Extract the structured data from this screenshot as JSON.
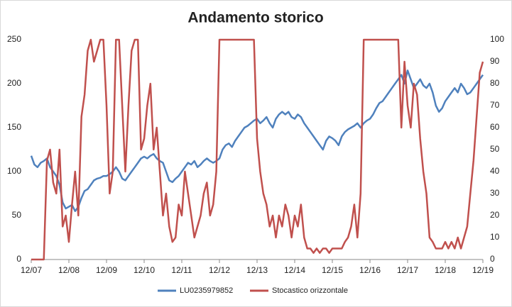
{
  "chart_data": {
    "type": "line",
    "title": "Andamento storico",
    "x": [
      "12/07",
      "01/08",
      "02/08",
      "03/08",
      "04/08",
      "05/08",
      "06/08",
      "07/08",
      "08/08",
      "09/08",
      "10/08",
      "11/08",
      "12/08",
      "01/09",
      "02/09",
      "03/09",
      "04/09",
      "05/09",
      "06/09",
      "07/09",
      "08/09",
      "09/09",
      "10/09",
      "11/09",
      "12/09",
      "01/10",
      "02/10",
      "03/10",
      "04/10",
      "05/10",
      "06/10",
      "07/10",
      "08/10",
      "09/10",
      "10/10",
      "11/10",
      "12/10",
      "01/11",
      "02/11",
      "03/11",
      "04/11",
      "05/11",
      "06/11",
      "07/11",
      "08/11",
      "09/11",
      "10/11",
      "11/11",
      "12/11",
      "01/12",
      "02/12",
      "03/12",
      "04/12",
      "05/12",
      "06/12",
      "07/12",
      "08/12",
      "09/12",
      "10/12",
      "11/12",
      "12/12",
      "01/13",
      "02/13",
      "03/13",
      "04/13",
      "05/13",
      "06/13",
      "07/13",
      "08/13",
      "09/13",
      "10/13",
      "11/13",
      "12/13",
      "01/14",
      "02/14",
      "03/14",
      "04/14",
      "05/14",
      "06/14",
      "07/14",
      "08/14",
      "09/14",
      "10/14",
      "11/14",
      "12/14",
      "01/15",
      "02/15",
      "03/15",
      "04/15",
      "05/15",
      "06/15",
      "07/15",
      "08/15",
      "09/15",
      "10/15",
      "11/15",
      "12/15",
      "01/16",
      "02/16",
      "03/16",
      "04/16",
      "05/16",
      "06/16",
      "07/16",
      "08/16",
      "09/16",
      "10/16",
      "11/16",
      "12/16",
      "01/17",
      "02/17",
      "03/17",
      "04/17",
      "05/17",
      "06/17",
      "07/17",
      "08/17",
      "09/17",
      "10/17",
      "11/17",
      "12/17",
      "01/18",
      "02/18",
      "03/18",
      "04/18",
      "05/18",
      "06/18",
      "07/18",
      "08/18",
      "09/18",
      "10/18",
      "11/18",
      "12/18",
      "01/19",
      "02/19",
      "03/19",
      "04/19",
      "05/19",
      "06/19",
      "07/19",
      "08/19",
      "09/19",
      "10/19",
      "11/19",
      "12/19"
    ],
    "xticks": [
      "12/07",
      "12/08",
      "12/09",
      "12/10",
      "12/11",
      "12/12",
      "12/13",
      "12/14",
      "12/15",
      "12/16",
      "12/17",
      "12/18",
      "12/19"
    ],
    "ylim": [
      0,
      250
    ],
    "yticks": [
      0,
      50,
      100,
      150,
      200,
      250
    ],
    "y2lim": [
      0,
      100
    ],
    "y2ticks": [
      0,
      10,
      20,
      30,
      40,
      50,
      60,
      70,
      80,
      90,
      100
    ],
    "legend": "bottom",
    "series": [
      {
        "name": "LU0235979852",
        "color": "#4f81bd",
        "values": [
          118,
          108,
          105,
          110,
          112,
          115,
          105,
          100,
          95,
          85,
          65,
          58,
          60,
          62,
          55,
          60,
          70,
          78,
          80,
          85,
          90,
          92,
          93,
          95,
          95,
          97,
          100,
          105,
          100,
          92,
          90,
          95,
          100,
          105,
          110,
          115,
          117,
          115,
          118,
          120,
          115,
          112,
          110,
          100,
          90,
          88,
          92,
          95,
          100,
          105,
          110,
          108,
          112,
          105,
          108,
          112,
          115,
          112,
          110,
          112,
          115,
          125,
          130,
          132,
          128,
          135,
          140,
          145,
          150,
          152,
          155,
          158,
          160,
          155,
          158,
          162,
          155,
          150,
          160,
          165,
          168,
          165,
          168,
          162,
          160,
          165,
          162,
          155,
          150,
          145,
          140,
          135,
          130,
          125,
          135,
          140,
          138,
          135,
          130,
          140,
          145,
          148,
          150,
          152,
          155,
          150,
          155,
          158,
          160,
          165,
          172,
          178,
          180,
          185,
          190,
          195,
          200,
          205,
          210,
          200,
          215,
          205,
          195,
          200,
          205,
          198,
          195,
          200,
          190,
          175,
          168,
          172,
          180,
          185,
          190,
          195,
          190,
          200,
          195,
          188,
          190,
          195,
          200,
          205,
          210
        ]
      },
      {
        "name": "Stocastico orizzontale",
        "color": "#c0504d",
        "axis": "y2",
        "values": [
          0,
          0,
          0,
          0,
          0,
          45,
          50,
          35,
          30,
          50,
          15,
          20,
          8,
          25,
          40,
          20,
          65,
          75,
          95,
          100,
          90,
          95,
          100,
          100,
          70,
          30,
          40,
          100,
          100,
          70,
          40,
          70,
          95,
          100,
          100,
          50,
          55,
          70,
          80,
          50,
          60,
          40,
          20,
          30,
          15,
          8,
          10,
          25,
          20,
          40,
          30,
          20,
          10,
          15,
          20,
          30,
          35,
          20,
          25,
          40,
          100,
          100,
          100,
          100,
          100,
          100,
          100,
          100,
          100,
          100,
          100,
          100,
          55,
          40,
          30,
          25,
          15,
          20,
          10,
          20,
          15,
          25,
          20,
          10,
          20,
          15,
          25,
          10,
          5,
          5,
          3,
          5,
          3,
          5,
          5,
          3,
          5,
          5,
          5,
          5,
          8,
          10,
          15,
          25,
          10,
          30,
          100,
          100,
          100,
          100,
          100,
          100,
          100,
          100,
          100,
          100,
          100,
          100,
          60,
          90,
          70,
          60,
          80,
          75,
          55,
          40,
          30,
          10,
          8,
          5,
          5,
          5,
          8,
          5,
          8,
          5,
          10,
          5,
          10,
          15,
          30,
          45,
          65,
          85,
          90
        ]
      }
    ]
  }
}
